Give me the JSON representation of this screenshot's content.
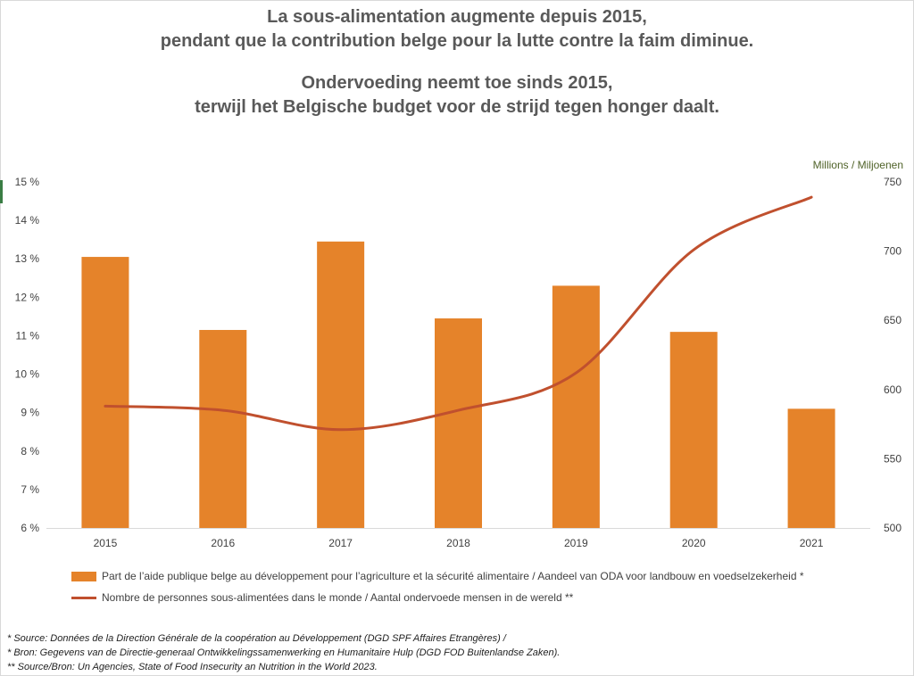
{
  "chart_data": {
    "type": "bar",
    "title_fr": [
      "La sous-alimentation augmente depuis 2015,",
      "pendant que la contribution belge pour la lutte contre la faim diminue."
    ],
    "title_nl": [
      "Ondervoeding neemt toe sinds 2015,",
      "terwijl het Belgische budget voor de strijd tegen honger daalt."
    ],
    "categories": [
      "2015",
      "2016",
      "2017",
      "2018",
      "2019",
      "2020",
      "2021"
    ],
    "series": [
      {
        "name": "Part de l’aide publique belge au développement pour l’agriculture et la sécurité alimentaire / Aandeel van ODA voor landbouw en voedselzekerheid *",
        "type": "bar",
        "axis": "left",
        "unit": "%",
        "values": [
          13.05,
          11.15,
          13.45,
          11.45,
          12.3,
          11.1,
          9.1
        ],
        "color": "#e5832a"
      },
      {
        "name": "Nombre de personnes sous-alimentées dans le monde / Aantal ondervoede mensen in de wereld **",
        "type": "line",
        "axis": "right",
        "values": [
          588,
          585,
          571,
          585,
          612,
          701,
          739
        ],
        "color": "#c0502e"
      }
    ],
    "y_left": {
      "ylim": [
        6,
        15
      ],
      "ticks": [
        "6 %",
        "7 %",
        "8 %",
        "9 %",
        "10 %",
        "11 %",
        "12 %",
        "13 %",
        "14 %",
        "15 %"
      ]
    },
    "y_right": {
      "ylim": [
        500,
        750
      ],
      "ticks": [
        "500",
        "550",
        "600",
        "650",
        "700",
        "750"
      ],
      "label": "Millions / Miljoenen"
    },
    "grid": false,
    "legend_position": "bottom-left"
  },
  "sources": [
    "* Source: Données de la Direction Générale de la coopération au Développement (DGD SPF Affaires Etrangères) /",
    "* Bron: Gegevens van de Directie-generaal Ontwikkelingssamenwerking en Humanitaire Hulp (DGD FOD Buitenlandse Zaken).",
    "** Source/Bron: Un Agencies, State of Food Insecurity an Nutrition in the World 2023."
  ]
}
